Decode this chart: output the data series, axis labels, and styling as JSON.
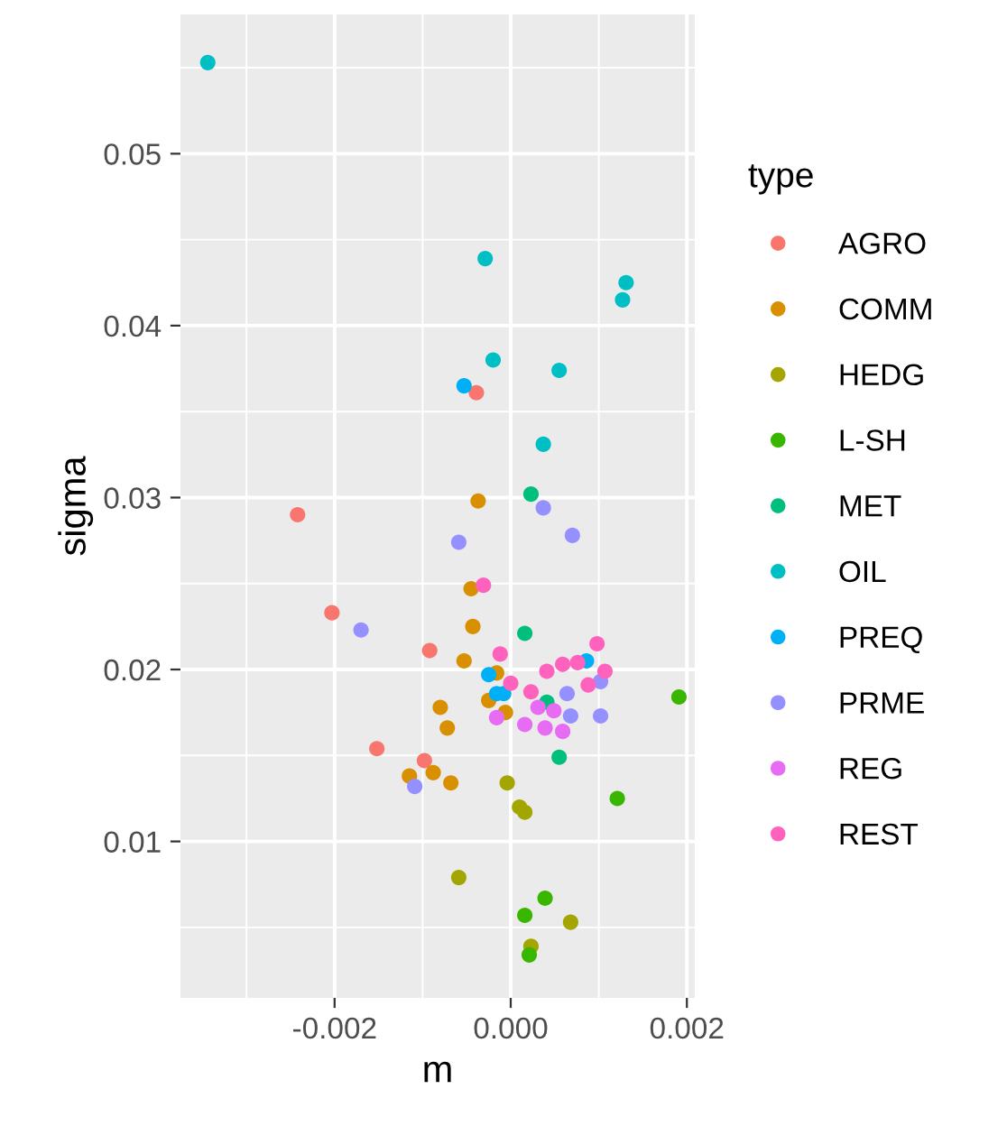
{
  "chart_data": {
    "type": "scatter",
    "xlabel": "m",
    "ylabel": "sigma",
    "legend_title": "type",
    "legend": "right",
    "grid": true,
    "marker": "circle",
    "xlim": [
      -0.00375,
      0.00209
    ],
    "ylim": [
      0.0009,
      0.0581
    ],
    "xticks": [
      {
        "value": -0.002,
        "label": "-0.002"
      },
      {
        "value": 0.0,
        "label": "0.000"
      },
      {
        "value": 0.002,
        "label": "0.002"
      }
    ],
    "yticks": [
      {
        "value": 0.01,
        "label": "0.01"
      },
      {
        "value": 0.02,
        "label": "0.02"
      },
      {
        "value": 0.03,
        "label": "0.03"
      },
      {
        "value": 0.04,
        "label": "0.04"
      },
      {
        "value": 0.05,
        "label": "0.05"
      }
    ],
    "series": [
      {
        "name": "AGRO",
        "color": "#f8766d",
        "x": [
          -0.00039,
          -0.00242,
          -0.00203,
          -0.00092,
          -0.00152,
          -0.00098
        ],
        "values": [
          0.0361,
          0.029,
          0.0233,
          0.0211,
          0.0154,
          0.0147
        ]
      },
      {
        "name": "COMM",
        "color": "#d89000",
        "x": [
          -0.00037,
          -0.00045,
          -0.00043,
          -0.00053,
          -0.00016,
          -0.00025,
          -0.0008,
          -6e-05,
          -0.00072,
          -0.00115,
          -0.00088,
          -0.00068
        ],
        "values": [
          0.0298,
          0.0247,
          0.0225,
          0.0205,
          0.0198,
          0.0182,
          0.0178,
          0.0175,
          0.0166,
          0.0138,
          0.014,
          0.0134
        ]
      },
      {
        "name": "HEDG",
        "color": "#a3a500",
        "x": [
          -4e-05,
          0.0001,
          0.00016,
          -0.00059,
          0.00068,
          0.00023
        ],
        "values": [
          0.0134,
          0.012,
          0.0117,
          0.0079,
          0.0053,
          0.0039
        ]
      },
      {
        "name": "L-SH",
        "color": "#39b600",
        "x": [
          0.00191,
          0.00121,
          0.00039,
          0.00016,
          0.00021
        ],
        "values": [
          0.0184,
          0.0125,
          0.0067,
          0.0057,
          0.0034
        ]
      },
      {
        "name": "MET",
        "color": "#00bf7d",
        "x": [
          0.00023,
          0.00016,
          0.00041,
          0.00055
        ],
        "values": [
          0.0302,
          0.0221,
          0.0181,
          0.0149
        ]
      },
      {
        "name": "OIL",
        "color": "#00bfc4",
        "x": [
          -0.00344,
          -0.00029,
          0.00131,
          0.00127,
          -0.0002,
          0.00055,
          0.00037
        ],
        "values": [
          0.0553,
          0.0439,
          0.0425,
          0.0415,
          0.038,
          0.0374,
          0.0331
        ]
      },
      {
        "name": "PREQ",
        "color": "#00b0f6",
        "x": [
          -0.00053,
          0.00086,
          -0.00025,
          -0.00016,
          -8e-05
        ],
        "values": [
          0.0365,
          0.0205,
          0.0197,
          0.0186,
          0.0186
        ]
      },
      {
        "name": "PRME",
        "color": "#9590ff",
        "x": [
          0.00037,
          0.0007,
          -0.00059,
          -0.0017,
          0.00102,
          0.00064,
          0.00068,
          0.00102,
          -0.00109
        ],
        "values": [
          0.0294,
          0.0278,
          0.0274,
          0.0223,
          0.0193,
          0.0186,
          0.0173,
          0.0173,
          0.0132
        ]
      },
      {
        "name": "REG",
        "color": "#e76bf3",
        "x": [
          0.00031,
          -0.00016,
          0.00016,
          0.00039,
          0.00059,
          0.00049
        ],
        "values": [
          0.0178,
          0.0172,
          0.0168,
          0.0166,
          0.0164,
          0.0176
        ]
      },
      {
        "name": "REST",
        "color": "#ff62bc",
        "x": [
          -0.00031,
          -0.00012,
          0.00098,
          0.00041,
          0.00059,
          0.00076,
          0.00107,
          0.0,
          0.00023,
          0.00088
        ],
        "values": [
          0.0249,
          0.0209,
          0.0215,
          0.0199,
          0.0203,
          0.0204,
          0.0199,
          0.0192,
          0.0187,
          0.0191
        ]
      }
    ]
  }
}
